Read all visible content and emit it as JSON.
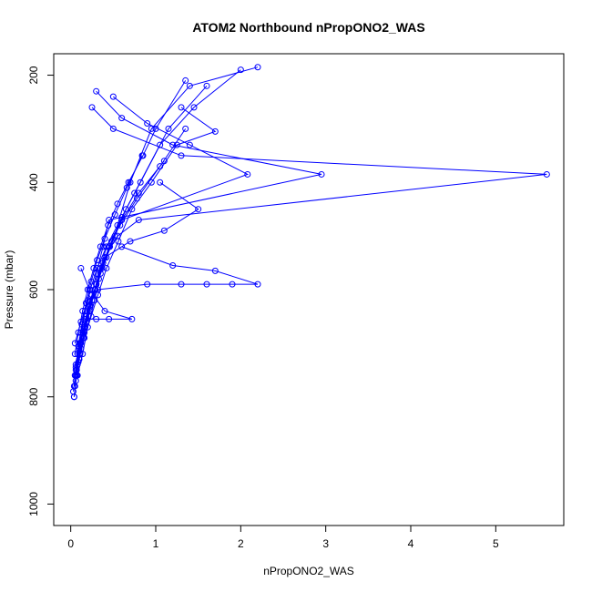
{
  "chart_data": {
    "type": "line",
    "title": "ATOM2 Northbound nPropONO2_WAS",
    "xlabel": "nPropONO2_WAS",
    "ylabel": "Pressure (mbar)",
    "xlim": [
      -0.2,
      5.8
    ],
    "ylim": [
      1040,
      160
    ],
    "y_reversed": true,
    "x_ticks": [
      0,
      1,
      2,
      3,
      4,
      5
    ],
    "y_ticks": [
      200,
      400,
      600,
      800,
      1000
    ],
    "grid": false,
    "legend": "none",
    "series_color": "#0000ff",
    "marker": "open-circle",
    "series": [
      {
        "x": [
          0.06,
          0.1,
          0.14,
          0.2,
          0.28,
          0.35,
          0.42,
          0.55,
          0.7,
          0.95,
          1.4,
          2.2
        ],
        "y": [
          760,
          720,
          680,
          640,
          600,
          560,
          520,
          480,
          400,
          300,
          220,
          185
        ]
      },
      {
        "x": [
          0.04,
          0.08,
          0.12,
          0.18,
          0.25,
          0.3,
          0.38,
          0.45,
          2.95,
          1.2,
          0.6,
          0.3
        ],
        "y": [
          800,
          740,
          700,
          650,
          610,
          570,
          520,
          470,
          385,
          330,
          280,
          230
        ]
      },
      {
        "x": [
          0.05,
          0.09,
          0.15,
          0.22,
          0.3,
          0.4,
          0.55,
          0.8,
          5.6,
          1.3,
          0.5,
          0.25
        ],
        "y": [
          780,
          735,
          690,
          640,
          590,
          540,
          500,
          470,
          385,
          350,
          300,
          260
        ]
      },
      {
        "x": [
          0.05,
          0.12,
          0.2,
          0.32,
          0.9,
          1.3,
          1.6,
          1.9,
          2.2,
          1.7,
          1.2,
          0.6
        ],
        "y": [
          700,
          660,
          620,
          600,
          590,
          590,
          590,
          590,
          590,
          565,
          555,
          520
        ]
      },
      {
        "x": [
          0.08,
          0.14,
          0.2,
          0.28,
          0.35,
          0.45,
          0.6,
          2.08,
          1.4,
          0.9,
          0.5
        ],
        "y": [
          760,
          720,
          670,
          620,
          570,
          520,
          470,
          385,
          330,
          290,
          240
        ]
      },
      {
        "x": [
          0.06,
          0.1,
          0.16,
          0.24,
          0.32,
          0.42,
          0.56,
          0.72,
          0.95,
          1.25,
          1.7,
          1.3
        ],
        "y": [
          770,
          730,
          690,
          650,
          610,
          560,
          510,
          450,
          400,
          330,
          305,
          260
        ]
      },
      {
        "x": [
          0.03,
          0.06,
          0.1,
          0.16,
          0.22,
          0.3,
          0.4,
          0.7,
          1.1,
          1.5,
          1.05
        ],
        "y": [
          790,
          750,
          710,
          670,
          630,
          590,
          540,
          510,
          490,
          450,
          400
        ]
      },
      {
        "x": [
          0.05,
          0.1,
          0.18,
          0.3,
          0.45,
          0.72,
          0.4,
          0.22,
          0.12
        ],
        "y": [
          760,
          700,
          655,
          655,
          655,
          655,
          640,
          600,
          560
        ]
      },
      {
        "x": [
          0.06,
          0.11,
          0.18,
          0.25,
          0.33,
          0.42,
          0.52,
          0.65,
          0.82,
          1.05,
          1.45,
          2.0
        ],
        "y": [
          740,
          700,
          660,
          620,
          580,
          540,
          500,
          450,
          400,
          330,
          260,
          190
        ]
      },
      {
        "x": [
          0.04,
          0.07,
          0.11,
          0.16,
          0.22,
          0.29,
          0.37,
          0.46,
          0.6,
          0.8,
          1.1
        ],
        "y": [
          800,
          760,
          720,
          680,
          640,
          600,
          560,
          520,
          470,
          420,
          360
        ]
      },
      {
        "x": [
          0.05,
          0.09,
          0.14,
          0.2,
          0.27,
          0.35,
          0.44,
          0.55,
          0.68,
          0.85,
          1.0,
          1.35
        ],
        "y": [
          720,
          680,
          640,
          600,
          560,
          520,
          480,
          440,
          400,
          350,
          300,
          210
        ]
      },
      {
        "x": [
          0.07,
          0.12,
          0.17,
          0.23,
          0.3,
          0.38,
          0.48,
          0.6,
          0.75,
          1.15,
          1.6
        ],
        "y": [
          750,
          710,
          670,
          630,
          590,
          550,
          510,
          465,
          420,
          300,
          220
        ]
      },
      {
        "x": [
          0.04,
          0.06,
          0.09,
          0.13,
          0.18,
          0.24,
          0.31,
          0.4,
          0.52,
          0.66,
          0.84
        ],
        "y": [
          780,
          745,
          705,
          665,
          625,
          585,
          545,
          505,
          460,
          410,
          350
        ]
      },
      {
        "x": [
          0.05,
          0.08,
          0.12,
          0.17,
          0.23,
          0.31,
          0.42,
          0.58,
          0.78,
          1.05,
          1.35
        ],
        "y": [
          760,
          720,
          680,
          640,
          600,
          560,
          520,
          480,
          430,
          370,
          300
        ]
      }
    ]
  }
}
